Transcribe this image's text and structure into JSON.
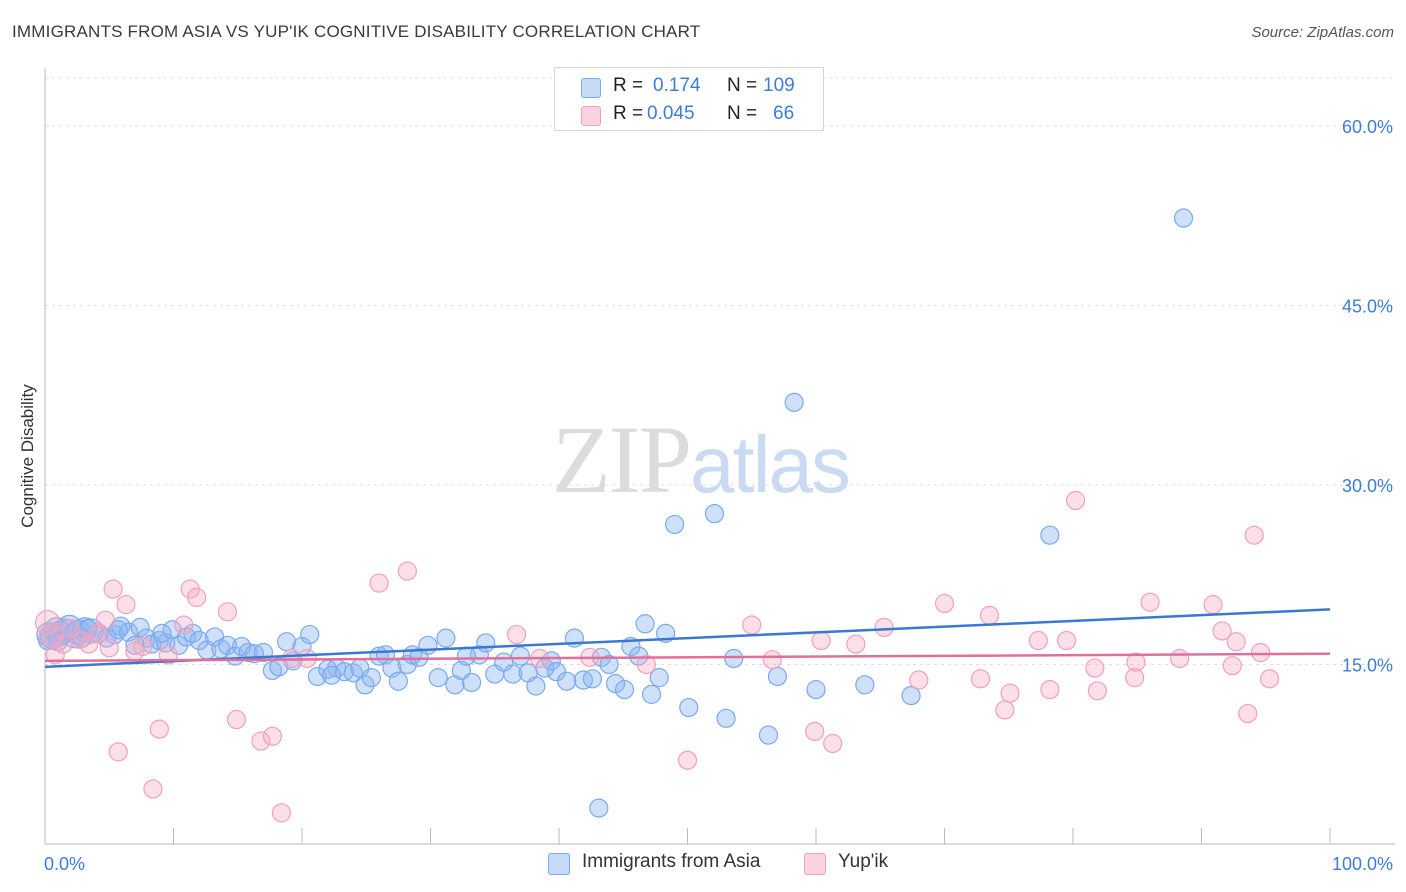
{
  "header": {
    "title": "IMMIGRANTS FROM ASIA VS YUP'IK COGNITIVE DISABILITY CORRELATION CHART",
    "source": "Source: ZipAtlas.com"
  },
  "watermark": {
    "zip": "ZIP",
    "atlas": "atlas"
  },
  "legend_top": {
    "rows": [
      {
        "r_label": "R = ",
        "r_value": "0.174",
        "n_label": "N = ",
        "n_value": "109",
        "color": "#7aaaf0"
      },
      {
        "r_label": "R = ",
        "r_value": "0.045",
        "n_label": "N = ",
        "n_value": "66",
        "color": "#f4a0bd"
      }
    ]
  },
  "legend_bottom": {
    "items": [
      {
        "label": "Immigrants from Asia",
        "color": "#7aaaf0"
      },
      {
        "label": "Yup'ik",
        "color": "#f4a0bd"
      }
    ]
  },
  "chart_data": {
    "type": "scatter",
    "title": "IMMIGRANTS FROM ASIA VS YUP'IK COGNITIVE DISABILITY CORRELATION CHART",
    "xlabel": "",
    "ylabel": "Cognitive Disability",
    "xlim": [
      0,
      100
    ],
    "ylim": [
      0,
      64
    ],
    "x_tick_labels": [
      "0.0%",
      "100.0%"
    ],
    "y_ticks": [
      15,
      30,
      45,
      60
    ],
    "y_tick_labels": [
      "15.0%",
      "30.0%",
      "45.0%",
      "60.0%"
    ],
    "grid": true,
    "colors": {
      "series1": "#3a78d6",
      "series2": "#e0709a",
      "tick_label": "#3d7dd8"
    },
    "series": [
      {
        "name": "Immigrants from Asia",
        "trend": {
          "x": [
            0,
            100
          ],
          "y": [
            14.8,
            19.6
          ]
        },
        "points": [
          [
            0.3,
            17.5
          ],
          [
            0.6,
            17.3
          ],
          [
            0.9,
            17.9
          ],
          [
            1.2,
            17.6
          ],
          [
            1.5,
            17.8
          ],
          [
            1.9,
            18.1
          ],
          [
            2.3,
            17.4
          ],
          [
            2.6,
            17.7
          ],
          [
            3.1,
            17.9
          ],
          [
            3.6,
            17.8
          ],
          [
            4.2,
            17.6
          ],
          [
            4.8,
            17.2
          ],
          [
            5.4,
            17.5
          ],
          [
            5.9,
            18.2
          ],
          [
            6.5,
            17.7
          ],
          [
            7.0,
            16.6
          ],
          [
            7.4,
            18.1
          ],
          [
            7.9,
            17.2
          ],
          [
            8.3,
            16.7
          ],
          [
            8.9,
            17.0
          ],
          [
            9.4,
            16.8
          ],
          [
            9.9,
            17.9
          ],
          [
            10.4,
            16.6
          ],
          [
            11.0,
            17.3
          ],
          [
            11.5,
            17.6
          ],
          [
            12.0,
            17.0
          ],
          [
            12.6,
            16.2
          ],
          [
            13.2,
            17.3
          ],
          [
            13.7,
            16.3
          ],
          [
            14.2,
            16.6
          ],
          [
            14.8,
            15.7
          ],
          [
            15.3,
            16.5
          ],
          [
            15.8,
            16.0
          ],
          [
            16.3,
            15.9
          ],
          [
            17.0,
            16.0
          ],
          [
            17.7,
            14.5
          ],
          [
            18.2,
            14.8
          ],
          [
            18.8,
            16.9
          ],
          [
            19.3,
            15.3
          ],
          [
            20.0,
            16.5
          ],
          [
            20.6,
            17.5
          ],
          [
            21.2,
            14.0
          ],
          [
            22.0,
            14.6
          ],
          [
            22.7,
            14.7
          ],
          [
            23.3,
            14.4
          ],
          [
            24.0,
            14.3
          ],
          [
            24.5,
            14.7
          ],
          [
            24.9,
            13.3
          ],
          [
            25.4,
            13.9
          ],
          [
            26.0,
            15.7
          ],
          [
            26.5,
            15.8
          ],
          [
            27.0,
            14.7
          ],
          [
            27.5,
            13.6
          ],
          [
            28.2,
            15.0
          ],
          [
            28.6,
            15.8
          ],
          [
            29.1,
            15.6
          ],
          [
            29.8,
            16.6
          ],
          [
            30.6,
            13.9
          ],
          [
            31.2,
            17.2
          ],
          [
            31.9,
            13.3
          ],
          [
            32.4,
            14.5
          ],
          [
            33.2,
            13.5
          ],
          [
            33.8,
            15.8
          ],
          [
            34.3,
            16.8
          ],
          [
            35.0,
            14.2
          ],
          [
            35.7,
            15.2
          ],
          [
            36.4,
            14.2
          ],
          [
            37.0,
            15.7
          ],
          [
            37.6,
            14.3
          ],
          [
            38.2,
            13.2
          ],
          [
            38.9,
            14.7
          ],
          [
            39.4,
            15.3
          ],
          [
            39.8,
            14.4
          ],
          [
            40.6,
            13.6
          ],
          [
            41.2,
            17.2
          ],
          [
            41.9,
            13.7
          ],
          [
            42.6,
            13.8
          ],
          [
            43.3,
            15.6
          ],
          [
            43.9,
            15.0
          ],
          [
            44.4,
            13.4
          ],
          [
            45.1,
            12.9
          ],
          [
            45.6,
            16.5
          ],
          [
            46.2,
            15.7
          ],
          [
            46.7,
            18.4
          ],
          [
            47.2,
            12.5
          ],
          [
            47.8,
            13.9
          ],
          [
            48.3,
            17.6
          ],
          [
            49.0,
            26.7
          ],
          [
            50.1,
            11.4
          ],
          [
            52.1,
            27.6
          ],
          [
            53.0,
            10.5
          ],
          [
            53.6,
            15.5
          ],
          [
            56.3,
            9.1
          ],
          [
            57.0,
            14.0
          ],
          [
            58.3,
            36.9
          ],
          [
            60.0,
            12.9
          ],
          [
            63.8,
            13.3
          ],
          [
            67.4,
            12.4
          ],
          [
            78.2,
            25.8
          ],
          [
            88.6,
            52.3
          ],
          [
            43.1,
            3.0
          ],
          [
            0.2,
            17.0
          ],
          [
            1.0,
            16.9
          ],
          [
            2.9,
            17.2
          ],
          [
            3.3,
            18.0
          ],
          [
            5.7,
            17.9
          ],
          [
            9.1,
            17.6
          ],
          [
            22.3,
            14.1
          ],
          [
            32.8,
            15.7
          ]
        ]
      },
      {
        "name": "Yup'ik",
        "trend": {
          "x": [
            0,
            100
          ],
          "y": [
            15.3,
            15.9
          ]
        },
        "points": [
          [
            0.2,
            18.5
          ],
          [
            0.5,
            17.4
          ],
          [
            0.8,
            15.8
          ],
          [
            1.4,
            16.7
          ],
          [
            2.0,
            18.0
          ],
          [
            2.7,
            17.1
          ],
          [
            3.4,
            16.7
          ],
          [
            4.1,
            17.6
          ],
          [
            4.7,
            18.7
          ],
          [
            5.0,
            16.4
          ],
          [
            5.3,
            21.3
          ],
          [
            5.7,
            7.7
          ],
          [
            6.3,
            20.0
          ],
          [
            7.0,
            16.1
          ],
          [
            7.6,
            16.5
          ],
          [
            8.4,
            4.6
          ],
          [
            8.9,
            9.6
          ],
          [
            9.6,
            15.8
          ],
          [
            10.8,
            18.3
          ],
          [
            11.3,
            21.3
          ],
          [
            11.8,
            20.6
          ],
          [
            14.2,
            19.4
          ],
          [
            14.9,
            10.4
          ],
          [
            16.8,
            8.6
          ],
          [
            17.7,
            9.0
          ],
          [
            18.4,
            2.6
          ],
          [
            19.2,
            15.5
          ],
          [
            20.4,
            15.5
          ],
          [
            26.0,
            21.8
          ],
          [
            28.2,
            22.8
          ],
          [
            36.7,
            17.5
          ],
          [
            38.5,
            15.5
          ],
          [
            42.4,
            15.6
          ],
          [
            46.8,
            15.0
          ],
          [
            50.0,
            7.0
          ],
          [
            55.0,
            18.3
          ],
          [
            56.6,
            15.4
          ],
          [
            59.9,
            9.4
          ],
          [
            60.4,
            17.0
          ],
          [
            61.3,
            8.4
          ],
          [
            63.1,
            16.7
          ],
          [
            65.3,
            18.1
          ],
          [
            68.0,
            13.7
          ],
          [
            70.0,
            20.1
          ],
          [
            72.8,
            13.8
          ],
          [
            73.5,
            19.1
          ],
          [
            74.7,
            11.2
          ],
          [
            75.1,
            12.6
          ],
          [
            77.3,
            17.0
          ],
          [
            78.2,
            12.9
          ],
          [
            79.5,
            17.0
          ],
          [
            80.2,
            28.7
          ],
          [
            81.7,
            14.7
          ],
          [
            81.9,
            12.8
          ],
          [
            84.8,
            13.9
          ],
          [
            84.9,
            15.2
          ],
          [
            86.0,
            20.2
          ],
          [
            88.3,
            15.5
          ],
          [
            90.9,
            20.0
          ],
          [
            91.6,
            17.8
          ],
          [
            92.4,
            14.9
          ],
          [
            92.7,
            16.9
          ],
          [
            93.6,
            10.9
          ],
          [
            94.1,
            25.8
          ],
          [
            94.6,
            16.0
          ],
          [
            95.3,
            13.8
          ]
        ]
      }
    ]
  }
}
